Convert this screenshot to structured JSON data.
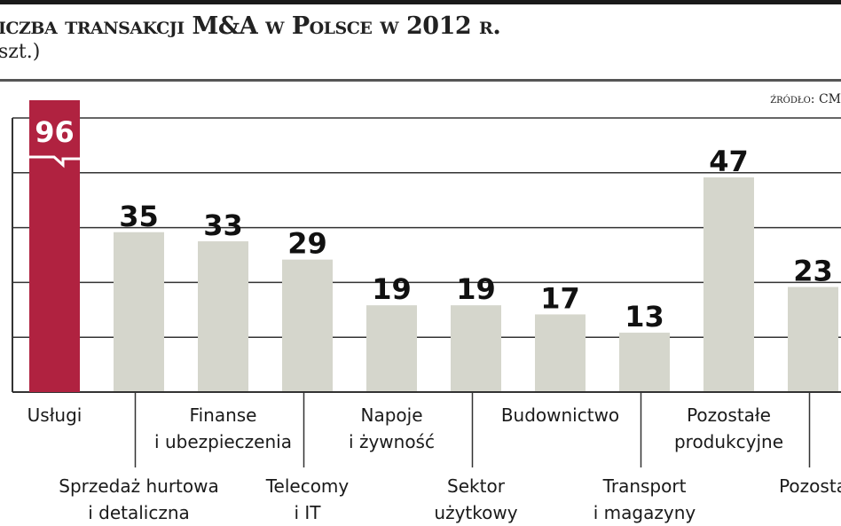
{
  "header": {
    "title": "iczba transakcji M&A w Polsce w 2012 r.",
    "subtitle": "szt.)",
    "source": "źródło: CM"
  },
  "chart_data": {
    "type": "bar",
    "title": "iczba transakcji M&A w Polsce w 2012 r.",
    "categories": [
      [
        "Usługi"
      ],
      [
        "Sprzedaż hurtowa",
        "i detaliczna"
      ],
      [
        "Finanse",
        "i ubezpieczenia"
      ],
      [
        "Telecomy",
        "i IT"
      ],
      [
        "Napoje",
        "i żywność"
      ],
      [
        "Sektor",
        "użytkowy"
      ],
      [
        "Budownictwo"
      ],
      [
        "Transport",
        "i magazyny"
      ],
      [
        "Pozostałe",
        "produkcyjne"
      ],
      [
        "Pozosta"
      ]
    ],
    "values": [
      96,
      35,
      33,
      29,
      19,
      19,
      17,
      13,
      47,
      23
    ],
    "gridlines": [
      12,
      24,
      36,
      48,
      60
    ],
    "highlight_index": 0,
    "colors": {
      "highlight": "#b02240",
      "bar": "#d5d6cc",
      "grid": "#333333"
    },
    "grid": true
  }
}
